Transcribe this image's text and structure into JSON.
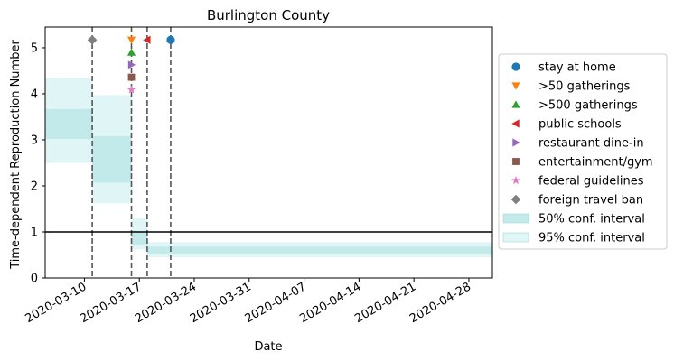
{
  "chart_data": {
    "type": "line",
    "title": "Burlington County",
    "xlabel": "Date",
    "ylabel": "Time-dependent Reproduction Number",
    "xlim": [
      "2020-03-05",
      "2020-05-01"
    ],
    "ylim": [
      0,
      5.45
    ],
    "x_ticks": [
      "2020-03-10",
      "2020-03-17",
      "2020-03-24",
      "2020-03-31",
      "2020-04-07",
      "2020-04-14",
      "2020-04-21",
      "2020-04-28"
    ],
    "y_ticks": [
      0,
      1,
      2,
      3,
      4,
      5
    ],
    "reference_line": {
      "y": 1,
      "color": "#000000"
    },
    "intervention_lines": [
      "2020-03-11",
      "2020-03-16",
      "2020-03-18",
      "2020-03-21"
    ],
    "bands": [
      {
        "name": "95% conf. interval",
        "color": "#e0f5f5",
        "segments": [
          {
            "start": "2020-03-05",
            "end": "2020-03-11",
            "low": 2.5,
            "high": 4.35
          },
          {
            "start": "2020-03-11",
            "end": "2020-03-16",
            "low": 1.62,
            "high": 3.97
          },
          {
            "start": "2020-03-16",
            "end": "2020-03-18",
            "low": 0.62,
            "high": 1.3
          },
          {
            "start": "2020-03-18",
            "end": "2020-05-01",
            "low": 0.45,
            "high": 0.78
          }
        ]
      },
      {
        "name": "50% conf. interval",
        "color": "#c3eaea",
        "segments": [
          {
            "start": "2020-03-05",
            "end": "2020-03-11",
            "low": 3.02,
            "high": 3.67
          },
          {
            "start": "2020-03-11",
            "end": "2020-03-16",
            "low": 2.07,
            "high": 3.08
          },
          {
            "start": "2020-03-16",
            "end": "2020-03-18",
            "low": 0.72,
            "high": 0.98
          },
          {
            "start": "2020-03-18",
            "end": "2020-05-01",
            "low": 0.53,
            "high": 0.68
          }
        ]
      }
    ],
    "series": [
      {
        "name": "stay at home",
        "marker": "circle",
        "color": "#1f77b4",
        "x": "2020-03-21",
        "y": 5.17
      },
      {
        "name": ">50 gatherings",
        "marker": "triangle-down",
        "color": "#ff7f0e",
        "x": "2020-03-16",
        "y": 5.17
      },
      {
        "name": ">500 gatherings",
        "marker": "triangle-up",
        "color": "#2ca02c",
        "x": "2020-03-16",
        "y": 4.9
      },
      {
        "name": "public schools",
        "marker": "triangle-left",
        "color": "#d62728",
        "x": "2020-03-18",
        "y": 5.17
      },
      {
        "name": "restaurant dine-in",
        "marker": "triangle-right",
        "color": "#9467bd",
        "x": "2020-03-16",
        "y": 4.63
      },
      {
        "name": "entertainment/gym",
        "marker": "square",
        "color": "#8c564b",
        "x": "2020-03-16",
        "y": 4.36
      },
      {
        "name": "federal guidelines",
        "marker": "star",
        "color": "#e377c2",
        "x": "2020-03-16",
        "y": 4.09
      },
      {
        "name": "foreign travel ban",
        "marker": "diamond",
        "color": "#7f7f7f",
        "x": "2020-03-11",
        "y": 5.17
      }
    ],
    "legend_position": "right"
  }
}
